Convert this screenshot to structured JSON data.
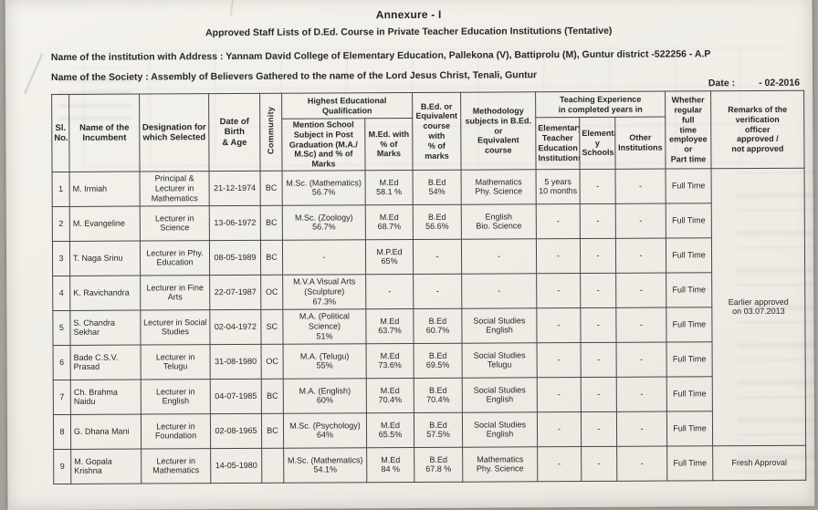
{
  "page": {
    "title": "Annexure - I",
    "subtitle": "Approved Staff Lists of D.Ed. Course in Private Teacher Education Institutions (Tentative)",
    "institution_line": "Name of the institution with Address : Yannam David College of Elementary Education, Pallekona (V), Battiprolu (M), Guntur district -522256 - A.P",
    "society_line": "Name of the Society :  Assembly of Believers Gathered to the name of the Lord Jesus Christ, Tenali, Guntur",
    "date_label": "Date :",
    "date_value": "- 02-2016"
  },
  "table": {
    "headers": {
      "sl_no": "Sl.\nNo.",
      "name": "Name of the\nIncumbent",
      "designation": "Designation for\nwhich Selected",
      "dob": "Date of Birth\n& Age",
      "community": "Community",
      "qualification_group": "Highest Educational Qualification",
      "pg_subject": "Mention School\nSubject in Post\nGraduation (M.A./\nM.Sc) and % of Marks",
      "med": "M.Ed. with\n% of Marks",
      "bed": "B.Ed. or\nEquivalent\ncourse with\n% of marks",
      "methodology": "Methodology\nsubjects in B.Ed. or\nEquivalent course",
      "experience_group": "Teaching Experience\nin completed years in",
      "exp_etei": "Elementary\nTeacher\nEducation\nInstitutions",
      "exp_elementary": "Elementar\ny Schools",
      "exp_other": "Other\nInstitutions",
      "fulltime": "Whether\nregular full\ntime\nemployee or\nPart time",
      "remarks": "Remarks of the\nverification\nofficer\napproved /\nnot approved"
    },
    "rows": [
      {
        "sl": "1",
        "name": "M. Irmiah",
        "designation": "Principal &\nLecturer in\nMathematics",
        "dob": "21-12-1974",
        "community": "BC",
        "pg": "M.Sc. (Mathematics)\n56.7%",
        "med": "M.Ed\n58.1 %",
        "bed": "B.Ed\n54%",
        "methodology": "Mathematics\nPhy. Science",
        "exp_etei": "5 years\n10 months",
        "exp_elem": "-",
        "exp_other": "-",
        "fulltime": "Full Time"
      },
      {
        "sl": "2",
        "name": "M. Evangeline",
        "designation": "Lecturer in\nScience",
        "dob": "13-06-1972",
        "community": "BC",
        "pg": "M.Sc. (Zoology)\n56.7%",
        "med": "M.Ed\n68.7%",
        "bed": "B.Ed\n56.6%",
        "methodology": "English\nBio. Science",
        "exp_etei": "-",
        "exp_elem": "-",
        "exp_other": "-",
        "fulltime": "Full Time"
      },
      {
        "sl": "3",
        "name": "T. Naga Srinu",
        "designation": "Lecturer in Phy.\nEducation",
        "dob": "08-05-1989",
        "community": "BC",
        "pg": "-",
        "med": "M.P.Ed\n65%",
        "bed": "-",
        "methodology": "-",
        "exp_etei": "-",
        "exp_elem": "-",
        "exp_other": "-",
        "fulltime": "Full Time"
      },
      {
        "sl": "4",
        "name": "K. Ravichandra",
        "designation": "Lecturer in Fine\nArts",
        "dob": "22-07-1987",
        "community": "OC",
        "pg": "M.V.A Visual Arts\n(Sculpture)\n67.3%",
        "med": "-",
        "bed": "-",
        "methodology": "-",
        "exp_etei": "-",
        "exp_elem": "-",
        "exp_other": "-",
        "fulltime": "Full Time"
      },
      {
        "sl": "5",
        "name": "S. Chandra Sekhar",
        "designation": "Lecturer in Social\nStudies",
        "dob": "02-04-1972",
        "community": "SC",
        "pg": "M.A. (Political\nScience)\n51%",
        "med": "M.Ed\n63.7%",
        "bed": "B.Ed\n60.7%",
        "methodology": "Social Studies\nEnglish",
        "exp_etei": "-",
        "exp_elem": "-",
        "exp_other": "-",
        "fulltime": "Full Time"
      },
      {
        "sl": "6",
        "name": "Bade C.S.V. Prasad",
        "designation": "Lecturer in Telugu",
        "dob": "31-08-1980",
        "community": "OC",
        "pg": "M.A. (Telugu)\n55%",
        "med": "M.Ed\n73.6%",
        "bed": "B.Ed\n69.5%",
        "methodology": "Social Studies\nTelugu",
        "exp_etei": "-",
        "exp_elem": "-",
        "exp_other": "-",
        "fulltime": "Full Time"
      },
      {
        "sl": "7",
        "name": "Ch. Brahma Naidu",
        "designation": "Lecturer in\nEnglish",
        "dob": "04-07-1985",
        "community": "BC",
        "pg": "M.A. (English)\n60%",
        "med": "M.Ed\n70.4%",
        "bed": "B.Ed\n70.4%",
        "methodology": "Social Studies\nEnglish",
        "exp_etei": "-",
        "exp_elem": "-",
        "exp_other": "-",
        "fulltime": "Full Time"
      },
      {
        "sl": "8",
        "name": "G. Dhana Mani",
        "designation": "Lecturer in\nFoundation",
        "dob": "02-08-1965",
        "community": "BC",
        "pg": "M.Sc. (Psychology)\n64%",
        "med": "M.Ed\n65.5%",
        "bed": "B.Ed\n57.5%",
        "methodology": "Social Studies\nEnglish",
        "exp_etei": "-",
        "exp_elem": "-",
        "exp_other": "-",
        "fulltime": "Full Time"
      },
      {
        "sl": "9",
        "name": "M. Gopala Krishna",
        "designation": "Lecturer in\nMathematics",
        "dob": "14-05-1980",
        "community": "",
        "pg": "M.Sc. (Mathematics)\n54.1%",
        "med": "M.Ed\n84 %",
        "bed": "B.Ed\n67.8 %",
        "methodology": "Mathematics\nPhy. Science",
        "exp_etei": "-",
        "exp_elem": "-",
        "exp_other": "-",
        "fulltime": "Full Time"
      }
    ],
    "remarks_rows_1_8": "Earlier approved\non 03.07.2013",
    "remarks_row_9": "Fresh Approval"
  }
}
